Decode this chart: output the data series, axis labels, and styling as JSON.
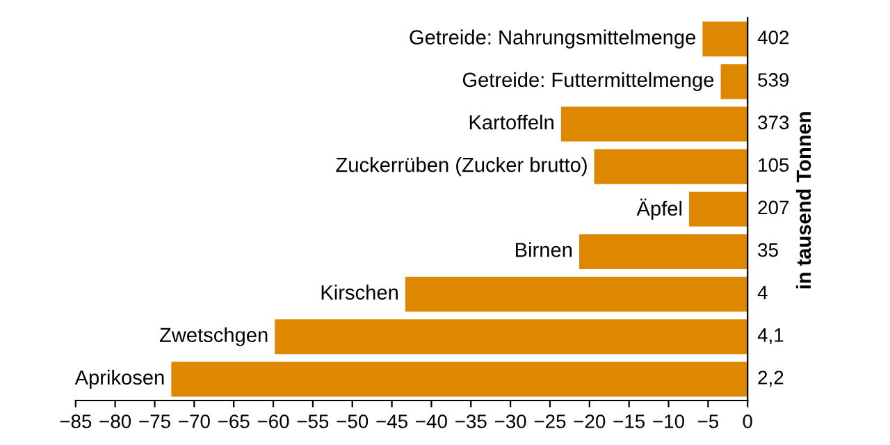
{
  "chart_data": {
    "type": "bar",
    "orientation": "horizontal",
    "categories": [
      "Getreide: Nahrungsmittelmenge",
      "Getreide: Futtermittelmenge",
      "Kartoffeln",
      "Zuckerrüben (Zucker brutto)",
      "Äpfel",
      "Birnen",
      "Kirschen",
      "Zwetschgen",
      "Aprikosen"
    ],
    "values": [
      -5.7,
      -3.4,
      -23.6,
      -19.4,
      -7.4,
      -21.3,
      -43.3,
      -59.8,
      -72.9
    ],
    "color": "#de8700",
    "xlim": [
      -85,
      0
    ],
    "xticks": [
      {
        "value": -85,
        "label": "−85"
      },
      {
        "value": -80,
        "label": "−80"
      },
      {
        "value": -75,
        "label": "−75"
      },
      {
        "value": -70,
        "label": "−70"
      },
      {
        "value": -65,
        "label": "−65"
      },
      {
        "value": -60,
        "label": "−60"
      },
      {
        "value": -55,
        "label": "−55"
      },
      {
        "value": -50,
        "label": "−50"
      },
      {
        "value": -45,
        "label": "−45"
      },
      {
        "value": -40,
        "label": "−40"
      },
      {
        "value": -35,
        "label": "−35"
      },
      {
        "value": -30,
        "label": "−30"
      },
      {
        "value": -25,
        "label": "−25"
      },
      {
        "value": -20,
        "label": "−20"
      },
      {
        "value": -15,
        "label": "−15"
      },
      {
        "value": -10,
        "label": "−10"
      },
      {
        "value": -5,
        "label": "−5"
      },
      0
    ],
    "y2label": "in tausend Tonnen",
    "annotations": [
      "402",
      "539",
      "373",
      "105",
      "207",
      "35",
      "4",
      "4,1",
      "2,2"
    ],
    "grid": false
  }
}
